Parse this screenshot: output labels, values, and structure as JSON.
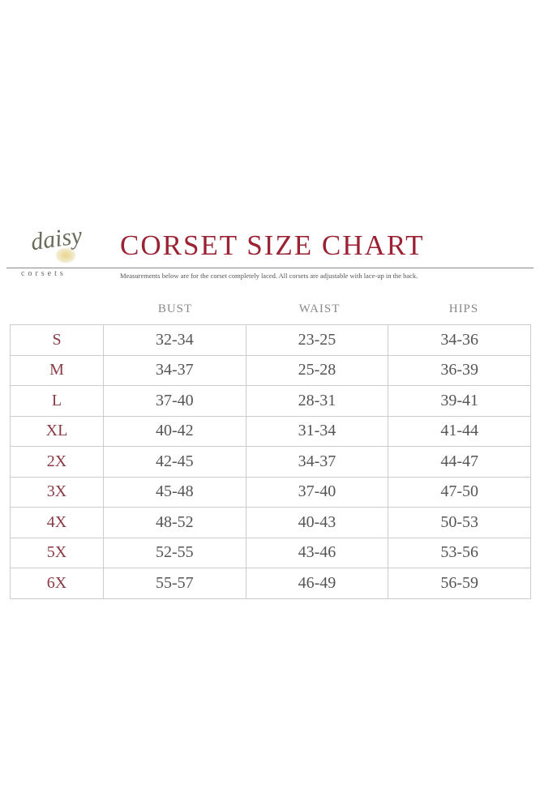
{
  "logo": {
    "script": "daisy",
    "word": "corsets"
  },
  "title": "CORSET SIZE CHART",
  "note": "Measurements below are for the corset completely laced. All corsets are adjustable with lace-up in the back.",
  "headers": [
    "BUST",
    "WAIST",
    "HIPS"
  ],
  "rows": [
    {
      "size": "S",
      "bust": "32-34",
      "waist": "23-25",
      "hips": "34-36"
    },
    {
      "size": "M",
      "bust": "34-37",
      "waist": "25-28",
      "hips": "36-39"
    },
    {
      "size": "L",
      "bust": "37-40",
      "waist": "28-31",
      "hips": "39-41"
    },
    {
      "size": "XL",
      "bust": "40-42",
      "waist": "31-34",
      "hips": "41-44"
    },
    {
      "size": "2X",
      "bust": "42-45",
      "waist": "34-37",
      "hips": "44-47"
    },
    {
      "size": "3X",
      "bust": "45-48",
      "waist": "37-40",
      "hips": "47-50"
    },
    {
      "size": "4X",
      "bust": "48-52",
      "waist": "40-43",
      "hips": "50-53"
    },
    {
      "size": "5X",
      "bust": "52-55",
      "waist": "43-46",
      "hips": "53-56"
    },
    {
      "size": "6X",
      "bust": "55-57",
      "waist": "46-49",
      "hips": "56-59"
    }
  ],
  "colors": {
    "title": "#9b2233",
    "size_label": "#8a3a45",
    "text": "#555555",
    "grid": "#cccccc"
  }
}
